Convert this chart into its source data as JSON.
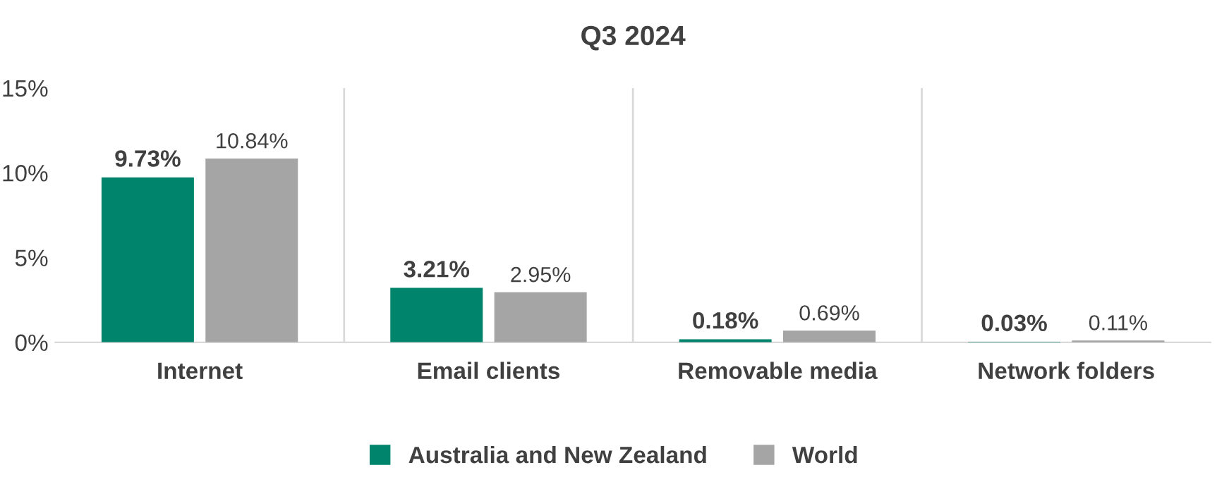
{
  "chart_data": {
    "type": "bar",
    "title": "Q3 2024",
    "categories": [
      "Internet",
      "Email clients",
      "Removable media",
      "Network folders"
    ],
    "series": [
      {
        "name": "Australia and New Zealand",
        "color": "#00846b",
        "values": [
          9.73,
          3.21,
          0.18,
          0.03
        ],
        "value_labels": [
          "9.73%",
          "3.21%",
          "0.18%",
          "0.03%"
        ]
      },
      {
        "name": "World",
        "color": "#a5a5a5",
        "values": [
          10.84,
          2.95,
          0.69,
          0.11
        ],
        "value_labels": [
          "10.84%",
          "2.95%",
          "0.69%",
          "0.11%"
        ]
      }
    ],
    "ylim": [
      0,
      15
    ],
    "yticks": [
      {
        "value": 0,
        "label": "0%"
      },
      {
        "value": 5,
        "label": "5%"
      },
      {
        "value": 10,
        "label": "10%"
      },
      {
        "value": 15,
        "label": "15%"
      }
    ],
    "grid": "x",
    "legend": "bottom"
  }
}
